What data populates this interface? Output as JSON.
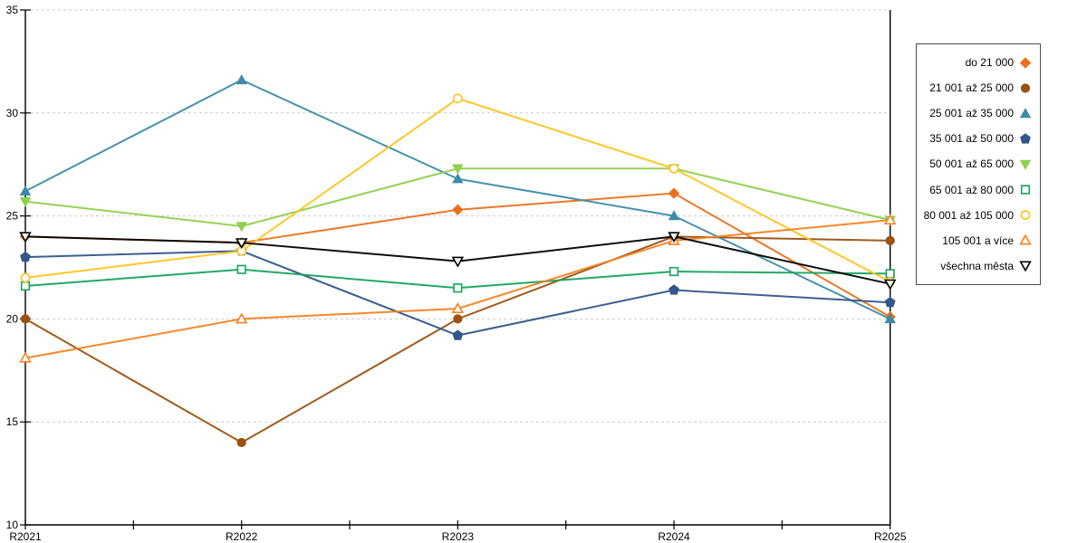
{
  "chart_data": {
    "type": "line",
    "title": "",
    "xlabel": "",
    "ylabel": "",
    "categories": [
      "R2021",
      "R2022",
      "R2023",
      "R2024",
      "R2025"
    ],
    "ylim": [
      10,
      35
    ],
    "yticks": [
      10,
      15,
      20,
      25,
      30,
      35
    ],
    "grid": "horizontal-dashed",
    "legend_position": "right-box",
    "series": [
      {
        "name": "do 21 000",
        "color": "#E8711E",
        "marker": "diamond",
        "fill": "solid",
        "values": [
          24.0,
          23.7,
          25.3,
          26.1,
          20.1
        ]
      },
      {
        "name": "21 001 až 25 000",
        "color": "#9B5110",
        "marker": "circle",
        "fill": "solid",
        "values": [
          20.0,
          14.0,
          20.0,
          24.0,
          23.8
        ]
      },
      {
        "name": "25 001 až 35 000",
        "color": "#3C8CA6",
        "marker": "triangle-up",
        "fill": "solid",
        "values": [
          26.2,
          31.6,
          26.8,
          25.0,
          20.0
        ]
      },
      {
        "name": "35 001 až 50 000",
        "color": "#33568C",
        "marker": "pentagon",
        "fill": "solid",
        "values": [
          23.0,
          23.3,
          19.2,
          21.4,
          20.8
        ]
      },
      {
        "name": "50 001 až 65 000",
        "color": "#8FD04C",
        "marker": "triangle-down",
        "fill": "solid",
        "values": [
          25.7,
          24.5,
          27.3,
          27.3,
          24.8
        ]
      },
      {
        "name": "65 001 až 80 000",
        "color": "#17A35D",
        "marker": "square",
        "fill": "open",
        "values": [
          21.6,
          22.4,
          21.5,
          22.3,
          22.2
        ]
      },
      {
        "name": "80 001 až 105 000",
        "color": "#FFC41E",
        "marker": "circle",
        "fill": "open",
        "values": [
          22.0,
          23.3,
          30.7,
          27.3,
          21.8
        ]
      },
      {
        "name": "105 001 a více",
        "color": "#F5821F",
        "marker": "triangle-up",
        "fill": "open",
        "values": [
          18.1,
          20.0,
          20.5,
          23.8,
          24.8
        ]
      },
      {
        "name": "všechna města",
        "color": "#000000",
        "marker": "triangle-down",
        "fill": "open",
        "values": [
          24.0,
          23.7,
          22.8,
          24.0,
          21.7
        ]
      }
    ]
  },
  "colors": {
    "background": "#FFFFFF",
    "gridline": "#C9C9C9",
    "axis": "#000000",
    "legend_border": "#4D4D4D",
    "text": "#000000"
  }
}
